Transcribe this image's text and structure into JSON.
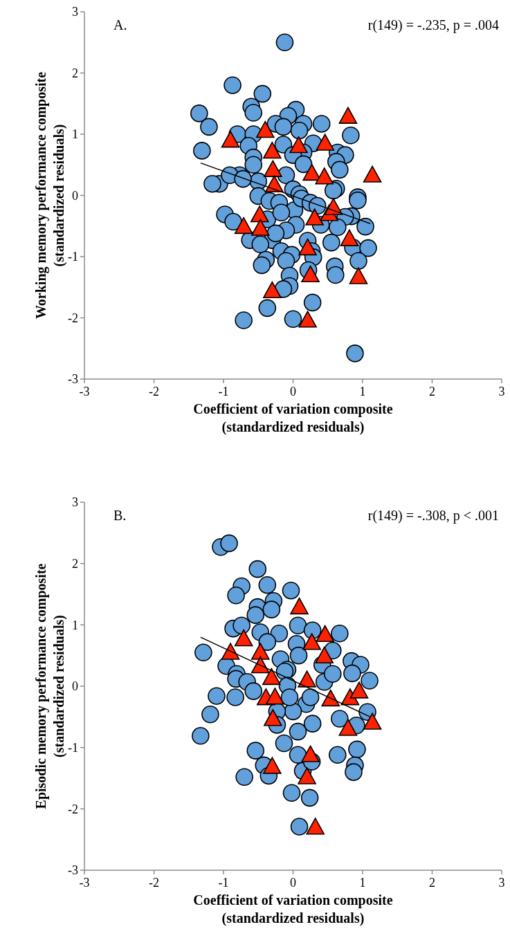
{
  "chart_data": [
    {
      "type": "scatter",
      "xlabel": "Coefficient of variation composite\n(standardized residuals)",
      "ylabel": "Working memory performance composite\n(standardized residuals)",
      "xlim": [
        -3,
        3
      ],
      "ylim": [
        -3,
        3
      ],
      "xticks": [
        -3,
        -2,
        -1,
        0,
        1,
        2,
        3
      ],
      "yticks": [
        -3,
        -2,
        -1,
        0,
        1,
        2,
        3
      ],
      "annotations": [
        "A.",
        "r(149) = -.235, p = .004"
      ],
      "series": [
        {
          "marker": "circle",
          "color": "#62a0dc",
          "x": [
            -0.12,
            -0.87,
            -0.44,
            -0.6,
            -0.57,
            -1.35,
            -1.21,
            -1.31,
            0.04,
            -0.07,
            -0.25,
            -0.14,
            0.15,
            0.41,
            0.83,
            -0.8,
            -0.57,
            -0.64,
            -0.14,
            0.09,
            0.29,
            0.64,
            0.75,
            0.15,
            0.0,
            -0.57,
            0.62,
            0.67,
            0.15,
            -0.57,
            -0.1,
            0.62,
            0.93,
            -1.06,
            -1.16,
            -0.77,
            -0.5,
            0.0,
            0.09,
            -0.91,
            -0.72,
            -0.5,
            -0.34,
            -0.2,
            0.02,
            0.12,
            0.25,
            0.35,
            0.58,
            0.93,
            0.84,
            0.75,
            1.04,
            0.64,
            0.4,
            -0.98,
            -0.86,
            -0.37,
            -0.17,
            0.04,
            -0.1,
            -0.62,
            -0.3,
            -0.47,
            -0.25,
            0.21,
            0.55,
            0.86,
            1.08,
            0.27,
            -0.17,
            -0.02,
            -0.1,
            0.29,
            -0.39,
            -0.45,
            0.94,
            0.6,
            0.61,
            0.22,
            -0.05,
            -0.05,
            -0.14,
            0.28,
            -0.37,
            -0.71,
            0.0,
            0.89
          ],
          "values": [
            2.5,
            1.8,
            1.66,
            1.45,
            1.35,
            1.34,
            1.12,
            0.73,
            1.4,
            1.3,
            1.17,
            1.12,
            1.17,
            1.17,
            0.98,
            1.0,
            1.0,
            0.81,
            0.83,
            1.06,
            0.85,
            0.7,
            0.66,
            0.7,
            0.66,
            0.62,
            0.55,
            0.42,
            0.51,
            0.5,
            0.33,
            0.11,
            -0.03,
            0.19,
            0.19,
            0.33,
            0.23,
            0.1,
            0.02,
            0.33,
            0.27,
            -0.01,
            -0.09,
            -0.12,
            -0.24,
            -0.05,
            -0.12,
            -0.17,
            0.08,
            -0.08,
            -0.34,
            -0.35,
            -0.51,
            -0.52,
            -0.48,
            -0.31,
            -0.43,
            -0.39,
            -0.28,
            -0.48,
            -0.57,
            -0.73,
            -0.73,
            -0.8,
            -0.62,
            -0.74,
            -0.77,
            -0.85,
            -0.86,
            -0.91,
            -0.91,
            -0.97,
            -1.07,
            -1.01,
            -1.05,
            -1.14,
            -1.07,
            -1.16,
            -1.3,
            -1.22,
            -1.31,
            -1.48,
            -1.53,
            -1.75,
            -1.84,
            -2.04,
            -2.02,
            -2.58
          ]
        },
        {
          "marker": "triangle",
          "color": "#ff2200",
          "x": [
            -0.9,
            -0.4,
            0.79,
            -0.3,
            0.08,
            0.46,
            -0.29,
            0.27,
            0.45,
            1.14,
            -0.27,
            -0.48,
            -0.71,
            -0.47,
            0.31,
            0.52,
            0.58,
            0.81,
            0.21,
            0.25,
            0.94,
            -0.3,
            0.21
          ],
          "values": [
            0.9,
            1.06,
            1.29,
            0.72,
            0.81,
            0.85,
            0.42,
            0.36,
            0.3,
            0.33,
            0.17,
            -0.32,
            -0.51,
            -0.54,
            -0.37,
            -0.3,
            -0.2,
            -0.71,
            -0.86,
            -1.3,
            -1.33,
            -1.56,
            -2.04
          ]
        },
        {
          "type": "line",
          "marker": "none",
          "color": "#000000",
          "x": [
            -1.33,
            1.11
          ],
          "values": [
            0.53,
            -0.46
          ]
        }
      ]
    },
    {
      "type": "scatter",
      "xlabel": "Coefficient of variation composite\n(standardized residuals)",
      "ylabel": "Episodic memory performance composite\n(standardized residuals)",
      "xlim": [
        -3,
        3
      ],
      "ylim": [
        -3,
        3
      ],
      "xticks": [
        -3,
        -2,
        -1,
        0,
        1,
        2,
        3
      ],
      "yticks": [
        -3,
        -2,
        -1,
        0,
        1,
        2,
        3
      ],
      "annotations": [
        "B.",
        "r(149) = -.308, p < .001"
      ],
      "series": [
        {
          "marker": "circle",
          "color": "#62a0dc",
          "x": [
            -1.04,
            -0.92,
            -0.51,
            -0.74,
            -0.82,
            -0.37,
            -0.03,
            -0.28,
            -0.51,
            -0.31,
            -0.54,
            -0.86,
            -0.74,
            -0.47,
            -0.2,
            0.07,
            0.28,
            0.67,
            -0.37,
            0.05,
            -1.29,
            -0.96,
            -0.81,
            -0.18,
            0.08,
            0.57,
            0.84,
            0.97,
            -0.08,
            0.42,
            -0.82,
            -0.66,
            -0.57,
            -1.1,
            -0.83,
            -1.19,
            -1.33,
            -0.12,
            -0.08,
            0.45,
            0.57,
            0.85,
            1.1,
            0.19,
            0.0,
            0.28,
            0.07,
            -0.23,
            -0.23,
            -0.13,
            0.07,
            0.14,
            0.27,
            0.67,
            0.91,
            1.07,
            0.64,
            0.92,
            0.89,
            0.87,
            -0.54,
            -0.42,
            -0.35,
            -0.7,
            -0.02,
            0.24,
            0.09,
            0.25,
            -0.05
          ],
          "values": [
            2.27,
            2.33,
            1.91,
            1.63,
            1.48,
            1.65,
            1.56,
            1.39,
            1.29,
            1.25,
            1.16,
            0.94,
            0.99,
            0.88,
            0.86,
            0.99,
            0.91,
            0.86,
            0.72,
            0.69,
            0.55,
            0.33,
            0.2,
            0.44,
            0.5,
            0.58,
            0.41,
            0.35,
            0.27,
            0.35,
            0.12,
            0.07,
            -0.08,
            -0.16,
            -0.18,
            -0.46,
            -0.81,
            0.24,
            0.01,
            0.07,
            0.2,
            0.21,
            0.09,
            -0.29,
            -0.41,
            -0.61,
            -0.74,
            -0.41,
            -0.63,
            -0.93,
            -1.12,
            -1.38,
            -1.23,
            -0.53,
            -0.64,
            -0.42,
            -1.12,
            -1.03,
            -1.29,
            -1.4,
            -1.05,
            -1.29,
            -1.46,
            -1.48,
            -1.74,
            -1.82,
            -2.29,
            -0.18,
            -0.18
          ]
        },
        {
          "marker": "triangle",
          "color": "#ff2200",
          "x": [
            0.09,
            -0.71,
            -0.9,
            -0.47,
            -0.47,
            -0.31,
            0.27,
            0.46,
            0.45,
            0.2,
            -0.39,
            -0.26,
            -0.29,
            0.54,
            0.82,
            0.95,
            1.14,
            0.79,
            0.25,
            0.2,
            -0.3,
            0.32
          ],
          "values": [
            1.29,
            0.77,
            0.55,
            0.55,
            0.33,
            0.14,
            0.71,
            0.84,
            0.49,
            0.1,
            -0.19,
            -0.18,
            -0.53,
            -0.21,
            -0.19,
            -0.08,
            -0.59,
            -0.69,
            -1.12,
            -1.48,
            -1.31,
            -2.3
          ]
        },
        {
          "type": "line",
          "marker": "none",
          "color": "#000000",
          "x": [
            -1.33,
            1.11
          ],
          "values": [
            0.8,
            -0.5
          ]
        }
      ]
    }
  ]
}
